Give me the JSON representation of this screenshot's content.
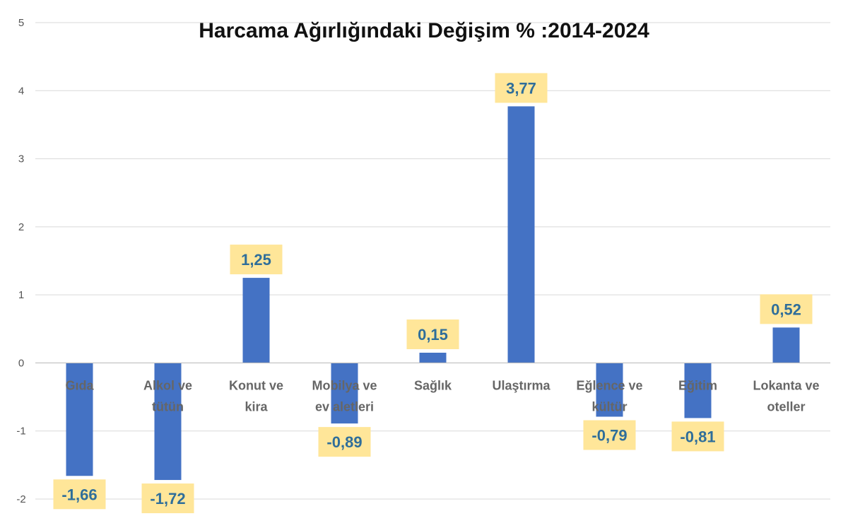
{
  "chart_data": {
    "type": "bar",
    "title": "Harcama Ağırlığındaki Değişim % :2014-2024",
    "xlabel": "",
    "ylabel": "",
    "categories": [
      [
        "Gıda"
      ],
      [
        "Alkol ve",
        "tütün"
      ],
      [
        "Konut ve",
        "kira"
      ],
      [
        "Mobilya ve",
        "ev aletleri"
      ],
      [
        "Sağlık"
      ],
      [
        "Ulaştırma"
      ],
      [
        "Eğlence ve",
        "kültür"
      ],
      [
        "Eğitim"
      ],
      [
        "Lokanta ve",
        "oteller"
      ]
    ],
    "values": [
      -1.66,
      -1.72,
      1.25,
      -0.89,
      0.15,
      3.77,
      -0.79,
      -0.81,
      0.52
    ],
    "data_labels": [
      "-1,66",
      "-1,72",
      "1,25",
      "-0,89",
      "0,15",
      "3,77",
      "-0,79",
      "-0,81",
      "0,52"
    ],
    "ylim": [
      -2,
      5
    ],
    "yticks": [
      5,
      4,
      3,
      2,
      1,
      0,
      -1,
      -2
    ],
    "grid": true,
    "legend": "none",
    "colors": {
      "bar": "#4472c4",
      "label_box": "#ffe699",
      "label_text": "#2f6e9a"
    }
  }
}
